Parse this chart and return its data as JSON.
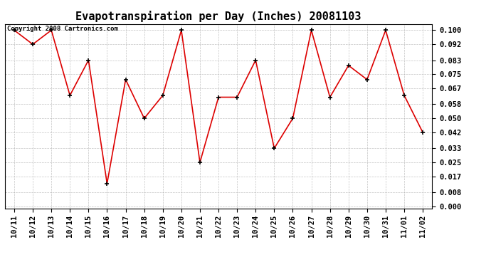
{
  "title": "Evapotranspiration per Day (Inches) 20081103",
  "copyright_text": "Copyright 2008 Cartronics.com",
  "dates": [
    "10/11",
    "10/12",
    "10/13",
    "10/14",
    "10/15",
    "10/16",
    "10/17",
    "10/18",
    "10/19",
    "10/20",
    "10/21",
    "10/22",
    "10/23",
    "10/24",
    "10/25",
    "10/26",
    "10/27",
    "10/28",
    "10/29",
    "10/30",
    "10/31",
    "11/01",
    "11/02"
  ],
  "values": [
    0.1,
    0.092,
    0.1,
    0.063,
    0.083,
    0.013,
    0.072,
    0.05,
    0.063,
    0.1,
    0.025,
    0.062,
    0.062,
    0.083,
    0.033,
    0.05,
    0.1,
    0.062,
    0.08,
    0.072,
    0.1,
    0.063,
    0.042
  ],
  "line_color": "#dd0000",
  "marker_color": "#000000",
  "bg_color": "#ffffff",
  "plot_bg_color": "#ffffff",
  "grid_color": "#aaaaaa",
  "yticks": [
    0.0,
    0.008,
    0.017,
    0.025,
    0.033,
    0.042,
    0.05,
    0.058,
    0.067,
    0.075,
    0.083,
    0.092,
    0.1
  ],
  "ylim": [
    0.0,
    0.1
  ],
  "title_fontsize": 11,
  "tick_fontsize": 7.5,
  "copyright_fontsize": 6.5
}
